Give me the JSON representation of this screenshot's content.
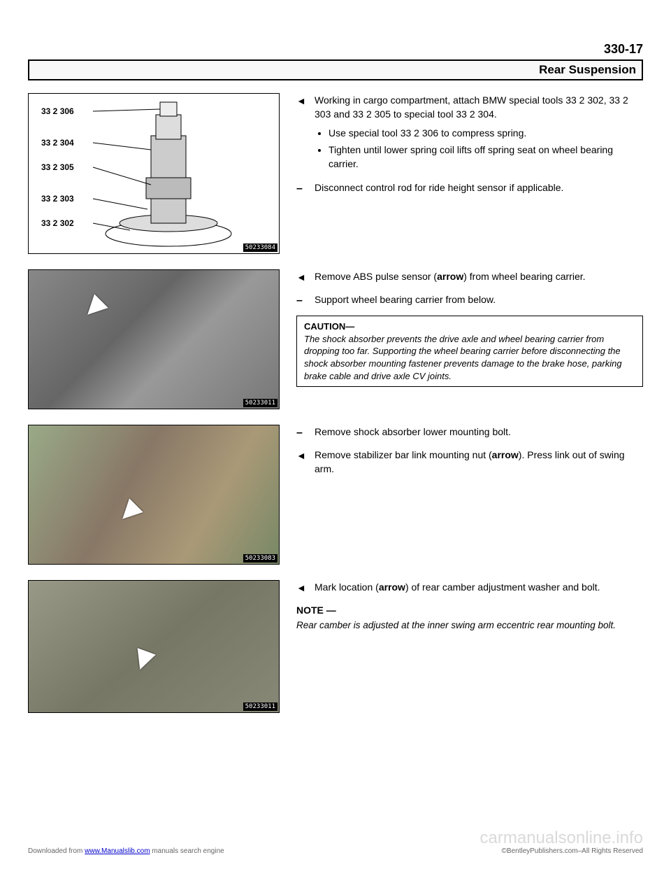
{
  "page_number": "330-17",
  "section_title": "Rear Suspension",
  "figures": {
    "fig1": {
      "id": "50233084",
      "labels": [
        "33 2 306",
        "33 2 304",
        "33 2 305",
        "33 2 303",
        "33 2 302"
      ]
    },
    "fig2": {
      "id": "50233011"
    },
    "fig3": {
      "id": "50233083"
    },
    "fig4": {
      "id": "50233011"
    }
  },
  "blocks": [
    {
      "steps": [
        {
          "marker": "tri",
          "text": "Working in cargo compartment, attach BMW special tools 33 2 302, 33 2 303 and 33 2 305 to special tool 33 2 304.",
          "bullets": [
            "Use special tool 33 2 306 to compress spring.",
            "Tighten until lower spring coil lifts off spring seat on wheel bearing carrier."
          ]
        },
        {
          "marker": "dash",
          "text": "Disconnect control rod for ride height sensor if applicable."
        }
      ]
    },
    {
      "steps": [
        {
          "marker": "tri",
          "text_html": "Remove ABS pulse sensor (<b>arrow</b>) from wheel bearing carrier."
        },
        {
          "marker": "dash",
          "text": "Support wheel bearing carrier from below."
        }
      ],
      "caution": {
        "title": "CAUTION—",
        "body": "The shock absorber prevents the drive axle and wheel bearing carrier from dropping too far. Supporting the wheel bearing carrier before disconnecting the shock absorber mounting fastener prevents damage to the brake hose, parking brake cable and drive axle CV joints."
      }
    },
    {
      "steps": [
        {
          "marker": "dash",
          "text": "Remove shock absorber lower mounting bolt."
        },
        {
          "marker": "tri",
          "text_html": "Remove stabilizer bar link mounting nut (<b>arrow</b>). Press link out of swing arm."
        }
      ]
    },
    {
      "steps": [
        {
          "marker": "tri",
          "text_html": "Mark location (<b>arrow</b>) of rear camber adjustment washer and bolt."
        }
      ],
      "note": {
        "title": "NOTE —",
        "body": "Rear camber is adjusted at the inner swing arm eccentric rear mounting bolt."
      }
    }
  ],
  "footer": {
    "left_prefix": "Downloaded from ",
    "left_link": "www.Manualslib.com",
    "left_suffix": " manuals search engine",
    "center": "©BentleyPublishers.com–All Rights Reserved",
    "watermark": "carmanualsonline.info"
  }
}
